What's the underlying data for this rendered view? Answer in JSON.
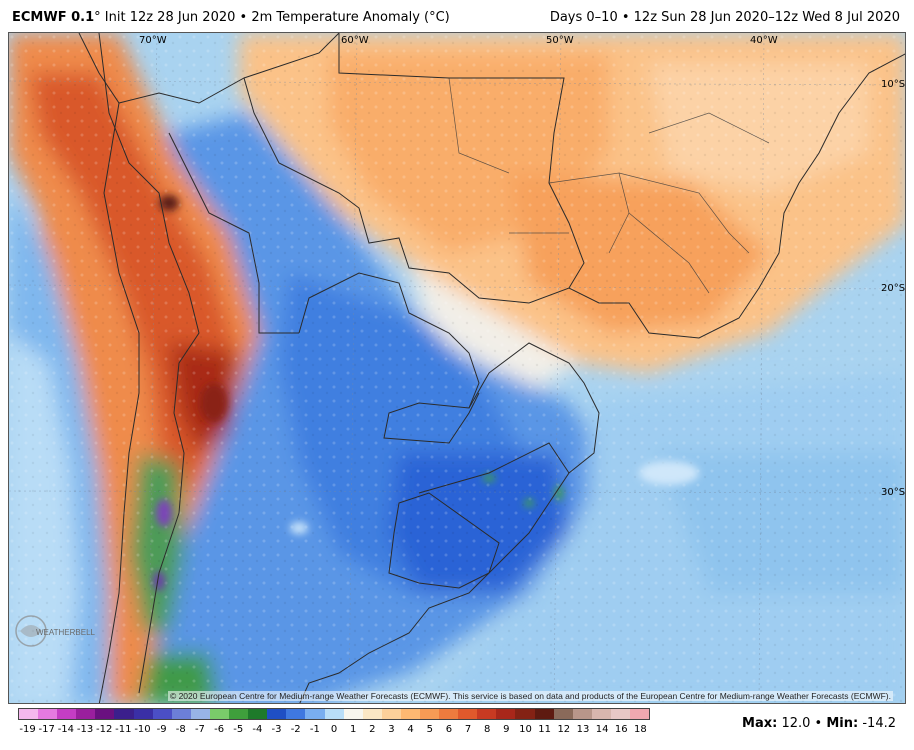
{
  "header": {
    "model": "ECMWF 0.1",
    "deg": "°",
    "run": " Init 12z 28 Jun 2020 • 2m Temperature Anomaly (°C)",
    "valid": "Days 0–10 • 12z Sun 28 Jun 2020–12z Wed 8 Jul 2020"
  },
  "map": {
    "lon_labels": [
      "70°W",
      "60°W",
      "50°W",
      "40°W"
    ],
    "lat_labels": [
      "10°S",
      "20°S",
      "30°S"
    ],
    "copyright": "© 2020 European Centre for Medium-range Weather Forecasts (ECMWF). This service is based on data and products of the European Centre for Medium-range Weather Forecasts (ECMWF).",
    "logo_text": "WEATHERBELL"
  },
  "colorbar": {
    "ticks": [
      "-19",
      "-17",
      "-14",
      "-13",
      "-12",
      "-11",
      "-10",
      "-9",
      "-8",
      "-7",
      "-6",
      "-5",
      "-4",
      "-3",
      "-2",
      "-1",
      "0",
      "1",
      "2",
      "3",
      "4",
      "5",
      "6",
      "7",
      "8",
      "9",
      "10",
      "11",
      "12",
      "13",
      "14",
      "16",
      "18"
    ],
    "colors": [
      "#f5b8ee",
      "#e57ae0",
      "#c43dc4",
      "#9a1f9e",
      "#6a1080",
      "#3b1f8c",
      "#3a2fa6",
      "#4b4fc6",
      "#6c7fd8",
      "#98b4e6",
      "#7acb6a",
      "#3f9f3c",
      "#1e7a2a",
      "#1f4fc4",
      "#3f78e0",
      "#79aef0",
      "#b9def8",
      "#f8f6ee",
      "#fbe7c4",
      "#fcd09a",
      "#fdb872",
      "#f79b55",
      "#ee7b3e",
      "#e0592c",
      "#c83a22",
      "#a8271a",
      "#842214",
      "#5e1a10",
      "#8a6a5a",
      "#b8968a",
      "#d8b6ae",
      "#e8c8c6",
      "#f0a8b0"
    ]
  },
  "stats": {
    "max_label": "Max:",
    "max_value": "12.0",
    "separator": "•",
    "min_label": "Min:",
    "min_value": "-14.2"
  }
}
